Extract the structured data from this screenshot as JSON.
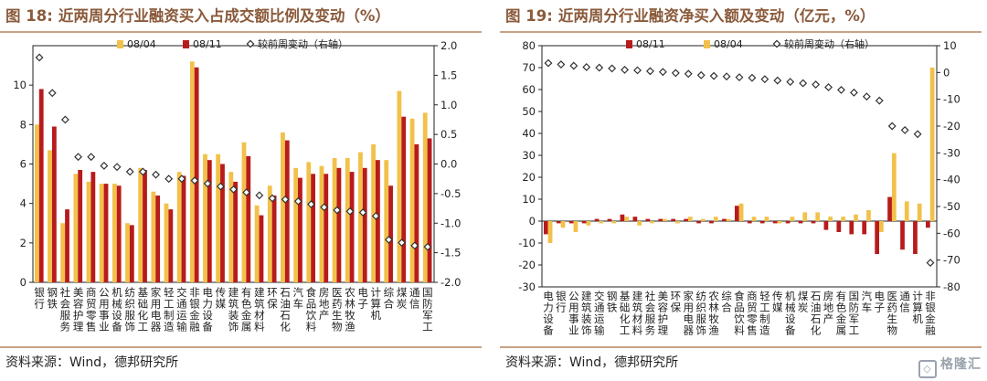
{
  "panels": [
    {
      "figure_num": "图 18:",
      "title": "近两周分行业融资买入占成交额比例及变动（%）",
      "source": "资料来源：Wind，德邦研究所"
    },
    {
      "figure_num": "图 19:",
      "title": "近两周分行业融资净买入额及变动（亿元，%）",
      "source": "资料来源：Wind，德邦研究所"
    }
  ],
  "watermark": "格隆汇",
  "colors": {
    "gold": "#f2c14b",
    "red": "#b81b1b",
    "diamond_fill": "#ffffff",
    "diamond_stroke": "#333333",
    "rule": "#c9a384",
    "title": "#8a5a3a"
  },
  "chart_data": [
    {
      "type": "bar",
      "categories": [
        "银行",
        "钢铁",
        "社会服务",
        "美容护理",
        "商贸零售",
        "公用事业",
        "机械设备",
        "纺织服饰",
        "基础化工",
        "家用电器",
        "轻工制造",
        "交通运输",
        "非银金融",
        "电力设备",
        "传媒",
        "建筑装饰",
        "有色金属",
        "建筑材料",
        "环保",
        "石油石化",
        "汽车",
        "食品饮料",
        "房地产",
        "医药生物",
        "农林牧渔",
        "电子",
        "计算机",
        "综合",
        "煤炭",
        "通信",
        "国防军工"
      ],
      "series": [
        {
          "name": "08/04",
          "color": "#f2c14b",
          "values": [
            8.0,
            6.7,
            3.0,
            5.5,
            5.1,
            5.0,
            5.0,
            3.0,
            5.8,
            4.6,
            4.0,
            5.6,
            11.2,
            6.5,
            6.5,
            5.6,
            7.1,
            3.9,
            4.9,
            7.6,
            5.8,
            6.1,
            5.9,
            6.3,
            6.3,
            6.6,
            7.0,
            6.2,
            9.7,
            8.3,
            8.6
          ]
        },
        {
          "name": "08/11",
          "color": "#b81b1b",
          "values": [
            9.8,
            7.9,
            3.7,
            5.7,
            5.6,
            5.0,
            4.9,
            2.9,
            5.7,
            4.4,
            3.7,
            5.4,
            10.9,
            6.2,
            6.0,
            5.1,
            6.4,
            3.4,
            4.4,
            7.2,
            5.3,
            5.5,
            5.5,
            5.8,
            5.6,
            5.8,
            6.2,
            4.9,
            8.4,
            7.0,
            7.3
          ]
        },
        {
          "name": "较前周变动（右轴）",
          "axis": "right",
          "values": [
            1.8,
            1.2,
            0.75,
            0.12,
            0.12,
            -0.03,
            -0.05,
            -0.13,
            -0.13,
            -0.18,
            -0.25,
            -0.25,
            -0.28,
            -0.33,
            -0.38,
            -0.43,
            -0.48,
            -0.53,
            -0.58,
            -0.6,
            -0.63,
            -0.68,
            -0.73,
            -0.78,
            -0.8,
            -0.82,
            -0.88,
            -1.28,
            -1.33,
            -1.38,
            -1.4
          ]
        }
      ],
      "ylim": [
        0,
        12
      ],
      "yticks": [
        0,
        2,
        4,
        6,
        8,
        10
      ],
      "y2lim": [
        -2.0,
        2.0
      ],
      "y2ticks": [
        "-2.0",
        "-1.5",
        "-1.0",
        "-0.5",
        "0.0",
        "0.5",
        "1.0",
        "1.5",
        "2.0"
      ],
      "legend": "top-center",
      "grid": false
    },
    {
      "type": "bar",
      "categories": [
        "电力设备",
        "银行",
        "公用事业",
        "建筑装饰",
        "交通运输",
        "钢铁",
        "基础化工",
        "建筑材料",
        "社会服务",
        "美容护理",
        "环保",
        "家用电器",
        "纺织服饰",
        "农林牧渔",
        "综合",
        "食品饮料",
        "商贸零售",
        "轻工制造",
        "传媒",
        "机械设备",
        "煤炭",
        "石油石化",
        "房地产",
        "有色金属",
        "国防军工",
        "汽车",
        "电子",
        "医药生物",
        "通信",
        "计算机",
        "非银金融"
      ],
      "series": [
        {
          "name": "08/11",
          "color": "#b81b1b",
          "values": [
            -6,
            -1,
            -1,
            -1,
            1,
            1,
            3,
            2,
            1,
            1,
            1,
            1,
            -1,
            -1,
            1,
            7,
            -1,
            -1,
            -1,
            -1,
            -1,
            -1,
            -4,
            -5,
            -6,
            -6,
            -15,
            11,
            -13,
            -15,
            -3
          ]
        },
        {
          "name": "08/04",
          "color": "#f2c14b",
          "values": [
            -10,
            -3,
            -5,
            -2,
            -1,
            -1,
            2,
            -2,
            -1,
            1,
            -1,
            2,
            1,
            2,
            1,
            8,
            2,
            2,
            -1,
            2,
            4,
            4,
            2,
            2,
            3,
            5,
            -5,
            31,
            9,
            8,
            70
          ]
        },
        {
          "name": "较前周变动（右轴）",
          "axis": "right",
          "values": [
            3.5,
            3.0,
            2.5,
            2.0,
            1.8,
            1.5,
            1.0,
            0.8,
            0.5,
            0.2,
            -0.2,
            -0.5,
            -1.0,
            -1.3,
            -1.5,
            -1.8,
            -2.0,
            -2.5,
            -3.0,
            -3.5,
            -4.0,
            -4.5,
            -5.5,
            -6.5,
            -7.5,
            -9.0,
            -10.5,
            -20.0,
            -21.5,
            -23.0,
            -71.0
          ]
        }
      ],
      "ylim": [
        -30,
        80
      ],
      "yticks": [
        "-30",
        "-20",
        "-10",
        "0",
        "10",
        "20",
        "30",
        "40",
        "50",
        "60",
        "70",
        "80"
      ],
      "y2lim": [
        -80,
        10
      ],
      "y2ticks": [
        "-80",
        "-70",
        "-60",
        "-50",
        "-40",
        "-30",
        "-20",
        "-10",
        "0",
        "10"
      ],
      "legend": "top-center",
      "grid": false
    }
  ]
}
